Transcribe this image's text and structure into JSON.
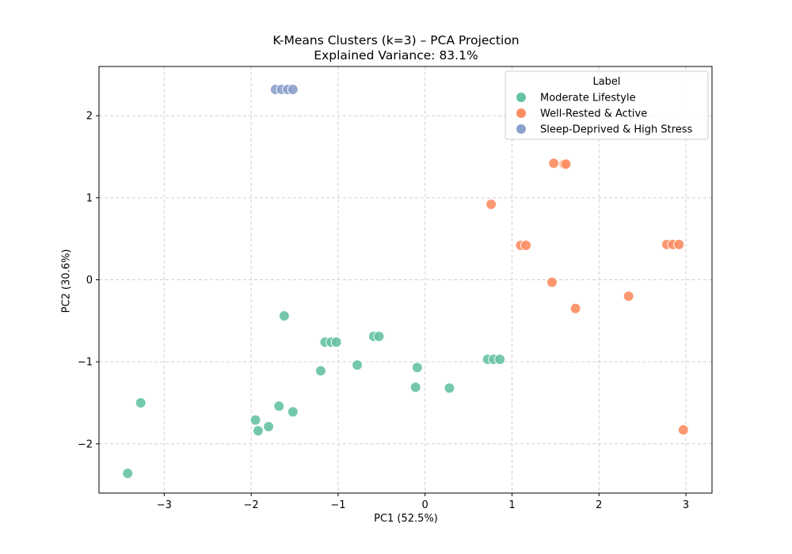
{
  "chart_data": {
    "type": "scatter",
    "title": "K-Means Clusters (k=3) – PCA Projection",
    "subtitle": "Explained Variance: 83.1%",
    "xlabel": "PC1 (52.5%)",
    "ylabel": "PC2 (30.6%)",
    "xlim": [
      -3.75,
      3.3
    ],
    "ylim": [
      -2.6,
      2.6
    ],
    "xticks": [
      -3,
      -2,
      -1,
      0,
      1,
      2,
      3
    ],
    "yticks": [
      -2,
      -1,
      0,
      1,
      2
    ],
    "grid": true,
    "legend_title": "Label",
    "legend_position": "top-right",
    "series": [
      {
        "name": "Moderate Lifestyle",
        "color": "#66c2a5",
        "points": [
          [
            -3.42,
            -2.36
          ],
          [
            -3.27,
            -1.5
          ],
          [
            -1.95,
            -1.71
          ],
          [
            -1.92,
            -1.84
          ],
          [
            -1.8,
            -1.79
          ],
          [
            -1.68,
            -1.54
          ],
          [
            -1.62,
            -0.44
          ],
          [
            -1.52,
            -1.61
          ],
          [
            -1.15,
            -0.76
          ],
          [
            -1.08,
            -0.76
          ],
          [
            -1.02,
            -0.76
          ],
          [
            -1.2,
            -1.11
          ],
          [
            -0.78,
            -1.04
          ],
          [
            -0.59,
            -0.69
          ],
          [
            -0.53,
            -0.69
          ],
          [
            -0.11,
            -1.31
          ],
          [
            -0.09,
            -1.07
          ],
          [
            0.28,
            -1.32
          ],
          [
            0.72,
            -0.97
          ],
          [
            0.79,
            -0.97
          ],
          [
            0.86,
            -0.97
          ]
        ]
      },
      {
        "name": "Well-Rested & Active",
        "color": "#fc8d62",
        "points": [
          [
            0.76,
            0.92
          ],
          [
            1.1,
            0.42
          ],
          [
            1.16,
            0.42
          ],
          [
            1.46,
            -0.03
          ],
          [
            1.48,
            1.42
          ],
          [
            1.6,
            1.41
          ],
          [
            1.62,
            1.41
          ],
          [
            1.73,
            -0.35
          ],
          [
            2.34,
            -0.2
          ],
          [
            2.78,
            0.43
          ],
          [
            2.85,
            0.43
          ],
          [
            2.92,
            0.43
          ],
          [
            2.97,
            -1.83
          ]
        ]
      },
      {
        "name": "Sleep-Deprived & High Stress",
        "color": "#8da0cb",
        "points": [
          [
            -1.72,
            2.32
          ],
          [
            -1.65,
            2.32
          ],
          [
            -1.58,
            2.32
          ],
          [
            -1.52,
            2.32
          ]
        ]
      }
    ]
  }
}
